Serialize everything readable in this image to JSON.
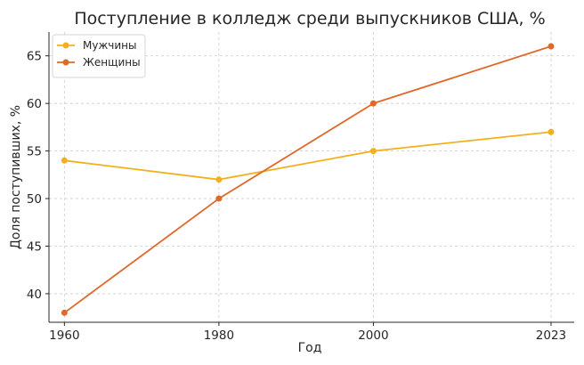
{
  "chart_data": {
    "type": "line",
    "title": "Поступление в колледж среди выпускников США, %",
    "xlabel": "Год",
    "ylabel": "Доля поступивших, %",
    "x": [
      1960,
      1980,
      2000,
      2023
    ],
    "x_ticks": [
      "1960",
      "1980",
      "2000",
      "2023"
    ],
    "y_ticks": [
      "40",
      "45",
      "50",
      "55",
      "60",
      "65"
    ],
    "xlim": [
      1958,
      2026
    ],
    "ylim": [
      37,
      67.5
    ],
    "grid": true,
    "legend_position": "top-left",
    "series": [
      {
        "name": "Мужчины",
        "values": [
          54,
          52,
          55,
          57
        ],
        "color": "#f2b01e"
      },
      {
        "name": "Женщины",
        "values": [
          38,
          50,
          60,
          66
        ],
        "color": "#e0682a"
      }
    ]
  }
}
